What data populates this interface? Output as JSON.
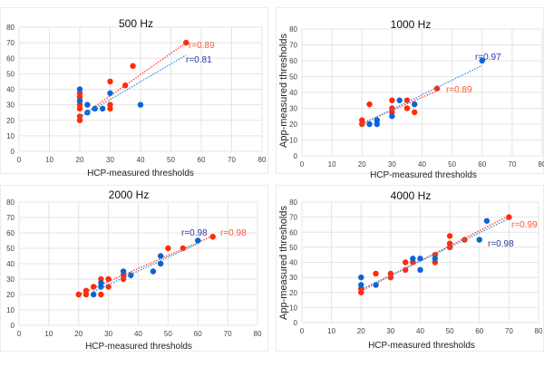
{
  "colors": {
    "red_point": "#ff2a0a",
    "blue_point": "#0a64d6",
    "red_line": "#ff3b2a",
    "blue_line": "#3a8de0",
    "red_label": "#ff5533",
    "blue_label": "#2a3aa8",
    "grid": "#e4e4e4"
  },
  "chart_data": [
    {
      "type": "scatter",
      "title": "500 Hz",
      "xlabel": "HCP-measured thresholds",
      "ylabel": "App-measured thresholds",
      "xlim": [
        0,
        80
      ],
      "ylim": [
        0,
        80
      ],
      "xticks": [
        0,
        10,
        20,
        30,
        40,
        50,
        60,
        70,
        80
      ],
      "yticks": [
        0,
        10,
        20,
        30,
        40,
        50,
        60,
        70,
        80
      ],
      "grid": true,
      "series": [
        {
          "color": "red",
          "points": [
            [
              20,
              20
            ],
            [
              20,
              22.5
            ],
            [
              20,
              27.5
            ],
            [
              20,
              30
            ],
            [
              20,
              32.5
            ],
            [
              20,
              35
            ],
            [
              20,
              37.5
            ],
            [
              30,
              27.5
            ],
            [
              30,
              30
            ],
            [
              30,
              45
            ],
            [
              35,
              42.5
            ],
            [
              37.5,
              55
            ],
            [
              55,
              70
            ]
          ],
          "trend": [
            [
              20,
              22
            ],
            [
              55,
              70
            ]
          ],
          "label": "r=0.89"
        },
        {
          "color": "blue",
          "points": [
            [
              20,
              40
            ],
            [
              20,
              32.5
            ],
            [
              22.5,
              30
            ],
            [
              22.5,
              25
            ],
            [
              25,
              27.5
            ],
            [
              27.5,
              27.5
            ],
            [
              30,
              37.5
            ],
            [
              40,
              30
            ]
          ],
          "trend": [
            [
              20,
              22
            ],
            [
              55,
              62
            ]
          ],
          "label": "r=0.81"
        }
      ]
    },
    {
      "type": "scatter",
      "title": "1000 Hz",
      "xlabel": "HCP-measured thresholds",
      "ylabel": "App-measured thresholds",
      "xlim": [
        0,
        80
      ],
      "ylim": [
        0,
        80
      ],
      "xticks": [
        0,
        10,
        20,
        30,
        40,
        50,
        60,
        70,
        80
      ],
      "yticks": [
        0,
        10,
        20,
        30,
        40,
        50,
        60,
        70,
        80
      ],
      "grid": true,
      "series": [
        {
          "color": "red",
          "points": [
            [
              20,
              20
            ],
            [
              20,
              22.5
            ],
            [
              22.5,
              32.5
            ],
            [
              30,
              27.5
            ],
            [
              30,
              30
            ],
            [
              30,
              35
            ],
            [
              35,
              35
            ],
            [
              35,
              30
            ],
            [
              37.5,
              27.5
            ],
            [
              45,
              42.5
            ]
          ],
          "trend": [
            [
              20,
              20.5
            ],
            [
              45,
              41
            ]
          ],
          "label": "r=0.89"
        },
        {
          "color": "blue",
          "points": [
            [
              22.5,
              20
            ],
            [
              25,
              20
            ],
            [
              25,
              22.5
            ],
            [
              30,
              25
            ],
            [
              32.5,
              35
            ],
            [
              37.5,
              32.5
            ],
            [
              60,
              60
            ]
          ],
          "trend": [
            [
              20,
              20
            ],
            [
              60,
              57
            ]
          ],
          "label": "r=0.97"
        }
      ]
    },
    {
      "type": "scatter",
      "title": "2000 Hz",
      "xlabel": "HCP-measured thresholds",
      "ylabel": "App-measured thresholds",
      "xlim": [
        0,
        80
      ],
      "ylim": [
        0,
        80
      ],
      "xticks": [
        0,
        10,
        20,
        30,
        40,
        50,
        60,
        70,
        80
      ],
      "yticks": [
        0,
        10,
        20,
        30,
        40,
        50,
        60,
        70,
        80
      ],
      "grid": true,
      "series": [
        {
          "color": "red",
          "points": [
            [
              20,
              20
            ],
            [
              22.5,
              20
            ],
            [
              22.5,
              22.5
            ],
            [
              25,
              25
            ],
            [
              27.5,
              20
            ],
            [
              27.5,
              30
            ],
            [
              30,
              30
            ],
            [
              30,
              25
            ],
            [
              35,
              30
            ],
            [
              35,
              32.5
            ],
            [
              50,
              50
            ],
            [
              55,
              50
            ],
            [
              65,
              57.5
            ]
          ],
          "trend": [
            [
              20,
              20
            ],
            [
              65,
              58
            ]
          ],
          "label": "r=0.98"
        },
        {
          "color": "blue",
          "points": [
            [
              25,
              20
            ],
            [
              27.5,
              25
            ],
            [
              27.5,
              27.5
            ],
            [
              35,
              35
            ],
            [
              37.5,
              32.5
            ],
            [
              45,
              35
            ],
            [
              47.5,
              40
            ],
            [
              47.5,
              45
            ],
            [
              60,
              55
            ]
          ],
          "trend": [
            [
              25,
              22
            ],
            [
              60,
              53
            ]
          ],
          "label": "r=0.98"
        }
      ]
    },
    {
      "type": "scatter",
      "title": "4000 Hz",
      "xlabel": "HCP-measured thresholds",
      "ylabel": "App-measured thresholds",
      "xlim": [
        0,
        80
      ],
      "ylim": [
        0,
        80
      ],
      "xticks": [
        0,
        10,
        20,
        30,
        40,
        50,
        60,
        70,
        80
      ],
      "yticks": [
        0,
        10,
        20,
        30,
        40,
        50,
        60,
        70,
        80
      ],
      "grid": true,
      "series": [
        {
          "color": "red",
          "points": [
            [
              20,
              20
            ],
            [
              20,
              22.5
            ],
            [
              25,
              32.5
            ],
            [
              30,
              30
            ],
            [
              30,
              32.5
            ],
            [
              35,
              35
            ],
            [
              35,
              40
            ],
            [
              37.5,
              40
            ],
            [
              45,
              40
            ],
            [
              45,
              45
            ],
            [
              50,
              50
            ],
            [
              50,
              52.5
            ],
            [
              50,
              57.5
            ],
            [
              55,
              55
            ],
            [
              70,
              70
            ]
          ],
          "trend": [
            [
              20,
              21
            ],
            [
              70,
              71
            ]
          ],
          "label": "r=0.99"
        },
        {
          "color": "blue",
          "points": [
            [
              20,
              30
            ],
            [
              20,
              25
            ],
            [
              25,
              25
            ],
            [
              37.5,
              42.5
            ],
            [
              40,
              42.5
            ],
            [
              40,
              35
            ],
            [
              45,
              42.5
            ],
            [
              60,
              55
            ],
            [
              62.5,
              67.5
            ]
          ],
          "trend": [
            [
              20,
              22
            ],
            [
              70,
              69
            ]
          ],
          "label": "r=0.98"
        }
      ]
    }
  ]
}
